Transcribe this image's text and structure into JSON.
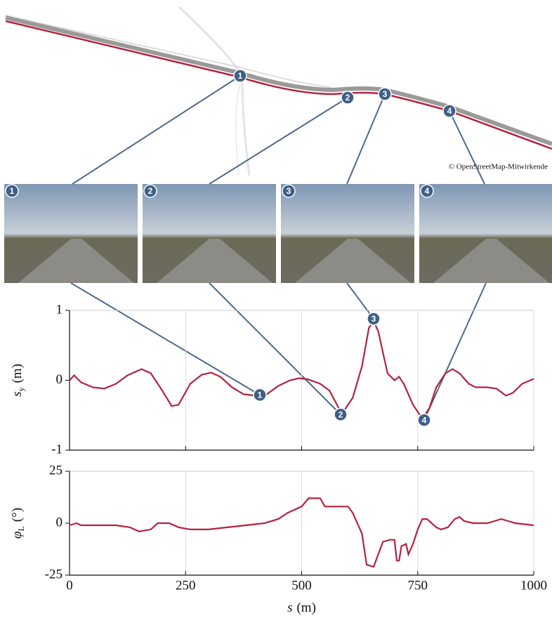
{
  "callouts": [
    "1",
    "2",
    "3",
    "4"
  ],
  "map_credit": "© OpenStreetMap-Mitwirkende",
  "chart_data": [
    {
      "type": "line",
      "color": "#b5223f",
      "x": [
        0,
        10,
        25,
        50,
        75,
        100,
        125,
        155,
        175,
        200,
        220,
        235,
        260,
        285,
        305,
        325,
        350,
        375,
        400,
        425,
        450,
        475,
        495,
        515,
        540,
        560,
        580,
        590,
        610,
        630,
        645,
        655,
        665,
        685,
        700,
        710,
        720,
        740,
        760,
        775,
        790,
        810,
        825,
        840,
        860,
        875,
        900,
        920,
        940,
        955,
        975,
        1000
      ],
      "values": [
        0.0,
        0.07,
        -0.03,
        -0.1,
        -0.12,
        -0.05,
        0.07,
        0.16,
        0.1,
        -0.15,
        -0.37,
        -0.35,
        -0.05,
        0.08,
        0.11,
        0.05,
        -0.1,
        -0.2,
        -0.22,
        -0.2,
        -0.08,
        0.0,
        0.03,
        0.01,
        -0.05,
        -0.15,
        -0.4,
        -0.45,
        -0.25,
        0.2,
        0.75,
        0.85,
        0.7,
        0.1,
        0.0,
        0.05,
        -0.05,
        -0.35,
        -0.55,
        -0.4,
        -0.1,
        0.1,
        0.16,
        0.1,
        -0.05,
        -0.1,
        -0.1,
        -0.12,
        -0.22,
        -0.18,
        -0.05,
        0.02
      ],
      "xlim": [
        0,
        1000
      ],
      "xticks": [
        0,
        250,
        500,
        750,
        1000
      ],
      "ylim": [
        -1,
        1
      ],
      "yticks": [
        -1,
        0,
        1
      ],
      "grid": true,
      "ylabel": {
        "symbol": "s",
        "subscript": "y",
        "unit": "(m)"
      },
      "markers": [
        {
          "x": 410,
          "y": -0.21
        },
        {
          "x": 584,
          "y": -0.49
        },
        {
          "x": 655,
          "y": 0.88
        },
        {
          "x": 764,
          "y": -0.57
        }
      ]
    },
    {
      "type": "line",
      "color": "#b5223f",
      "x": [
        0,
        15,
        25,
        100,
        130,
        150,
        175,
        190,
        215,
        235,
        260,
        300,
        340,
        380,
        420,
        450,
        470,
        500,
        515,
        540,
        550,
        570,
        600,
        610,
        620,
        630,
        640,
        655,
        665,
        675,
        690,
        700,
        705,
        710,
        715,
        725,
        730,
        740,
        750,
        760,
        770,
        780,
        790,
        800,
        815,
        830,
        840,
        850,
        870,
        900,
        930,
        945,
        960,
        1000
      ],
      "values": [
        -1,
        0,
        -1,
        -1,
        -2,
        -4,
        -3,
        0,
        0,
        -2,
        -3,
        -3,
        -2,
        -1,
        0,
        2,
        5,
        8,
        12,
        12,
        8,
        8,
        8,
        5,
        0,
        -5,
        -20,
        -21,
        -15,
        -9,
        -8,
        -8,
        -18,
        -18,
        -11,
        -10,
        -15,
        -10,
        -3,
        2,
        2,
        0,
        -2,
        -3,
        -2,
        2,
        3,
        1,
        0,
        0,
        2,
        1,
        0,
        -1
      ],
      "xlim": [
        0,
        1000
      ],
      "xticks": [
        0,
        250,
        500,
        750,
        1000
      ],
      "ylim": [
        -25,
        25
      ],
      "yticks": [
        -25,
        0,
        25
      ],
      "grid": true,
      "ylabel": {
        "symbol": "φ",
        "subscript": "L",
        "unit": "(°)"
      },
      "xlabel": {
        "symbol": "s",
        "unit": "(m)"
      }
    }
  ]
}
